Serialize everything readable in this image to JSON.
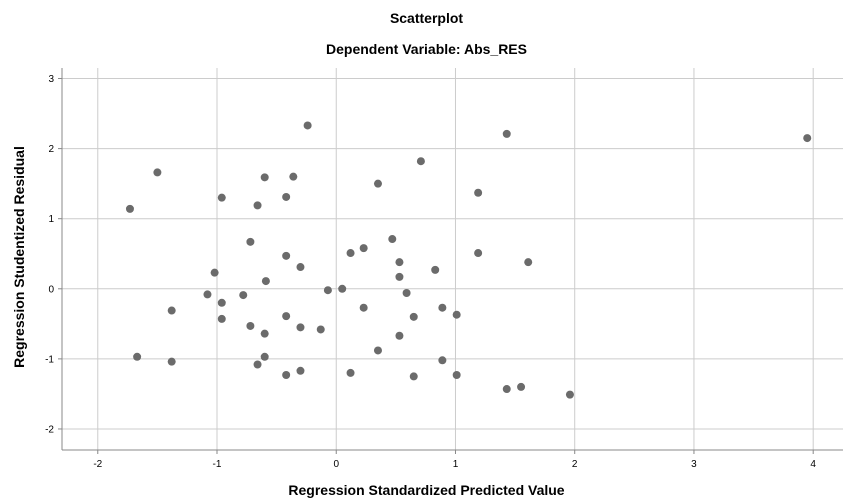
{
  "chart_data": {
    "type": "scatter",
    "title": "Scatterplot",
    "subtitle": "Dependent Variable: Abs_RES",
    "xlabel": "Regression Standardized Predicted Value",
    "ylabel": "Regression Studentized Residual",
    "xlim": [
      -2.3,
      4.25
    ],
    "ylim": [
      -2.3,
      3.15
    ],
    "xticks": [
      -2,
      -1,
      0,
      1,
      2,
      3,
      4
    ],
    "yticks": [
      -2,
      -1,
      0,
      1,
      2,
      3
    ],
    "grid": true,
    "colors": {
      "point": "#6b6b6b",
      "grid": "#cccccc",
      "axis": "#888888",
      "background": "#ffffff"
    },
    "points": [
      {
        "x": -1.73,
        "y": 1.14
      },
      {
        "x": -1.5,
        "y": 1.66
      },
      {
        "x": -1.67,
        "y": -0.97
      },
      {
        "x": -1.38,
        "y": -0.31
      },
      {
        "x": -1.38,
        "y": -1.04
      },
      {
        "x": -1.08,
        "y": -0.08
      },
      {
        "x": -1.02,
        "y": 0.23
      },
      {
        "x": -0.96,
        "y": -0.2
      },
      {
        "x": -0.96,
        "y": -0.43
      },
      {
        "x": -0.96,
        "y": 1.3
      },
      {
        "x": -0.78,
        "y": -0.09
      },
      {
        "x": -0.72,
        "y": 0.67
      },
      {
        "x": -0.72,
        "y": -0.53
      },
      {
        "x": -0.66,
        "y": 1.19
      },
      {
        "x": -0.66,
        "y": -1.08
      },
      {
        "x": -0.6,
        "y": 1.59
      },
      {
        "x": -0.6,
        "y": -0.64
      },
      {
        "x": -0.6,
        "y": -0.97
      },
      {
        "x": -0.59,
        "y": 0.11
      },
      {
        "x": -0.42,
        "y": 1.31
      },
      {
        "x": -0.42,
        "y": 0.47
      },
      {
        "x": -0.42,
        "y": -0.39
      },
      {
        "x": -0.42,
        "y": -1.23
      },
      {
        "x": -0.36,
        "y": 1.6
      },
      {
        "x": -0.3,
        "y": 0.31
      },
      {
        "x": -0.3,
        "y": -0.55
      },
      {
        "x": -0.3,
        "y": -1.17
      },
      {
        "x": -0.24,
        "y": 2.33
      },
      {
        "x": -0.13,
        "y": -0.58
      },
      {
        "x": -0.07,
        "y": -0.02
      },
      {
        "x": 0.05,
        "y": 0.0
      },
      {
        "x": 0.12,
        "y": 0.51
      },
      {
        "x": 0.12,
        "y": -1.2
      },
      {
        "x": 0.23,
        "y": 0.58
      },
      {
        "x": 0.23,
        "y": -0.27
      },
      {
        "x": 0.35,
        "y": 1.5
      },
      {
        "x": 0.35,
        "y": -0.88
      },
      {
        "x": 0.47,
        "y": 0.71
      },
      {
        "x": 0.53,
        "y": 0.38
      },
      {
        "x": 0.53,
        "y": 0.17
      },
      {
        "x": 0.53,
        "y": -0.67
      },
      {
        "x": 0.59,
        "y": -0.06
      },
      {
        "x": 0.65,
        "y": -0.4
      },
      {
        "x": 0.65,
        "y": -1.25
      },
      {
        "x": 0.71,
        "y": 1.82
      },
      {
        "x": 0.83,
        "y": 0.27
      },
      {
        "x": 0.89,
        "y": -0.27
      },
      {
        "x": 0.89,
        "y": -1.02
      },
      {
        "x": 1.01,
        "y": -0.37
      },
      {
        "x": 1.01,
        "y": -1.23
      },
      {
        "x": 1.19,
        "y": 1.37
      },
      {
        "x": 1.19,
        "y": 0.51
      },
      {
        "x": 1.43,
        "y": 2.21
      },
      {
        "x": 1.43,
        "y": -1.43
      },
      {
        "x": 1.55,
        "y": -1.4
      },
      {
        "x": 1.61,
        "y": 0.38
      },
      {
        "x": 1.96,
        "y": -1.51
      },
      {
        "x": 3.95,
        "y": 2.15
      }
    ]
  }
}
